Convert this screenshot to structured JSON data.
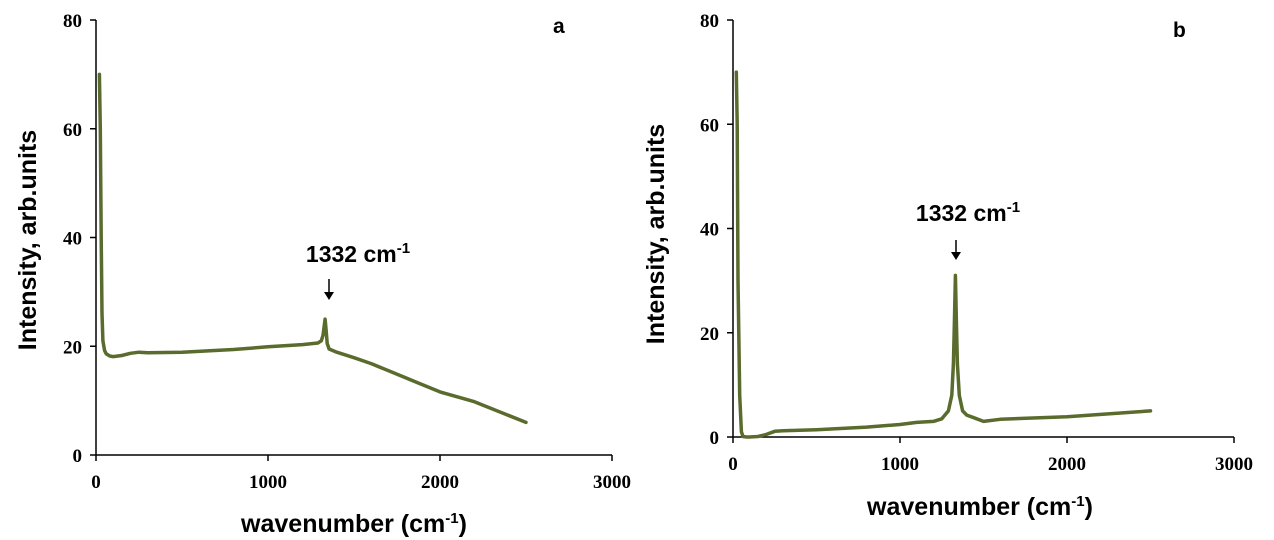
{
  "chart_data": [
    {
      "type": "line",
      "panel_label": "a",
      "xlabel": "wavenumber (cm",
      "xlabel_sup": "-1",
      "xlabel_end": ")",
      "ylabel": "Intensity, arb.units",
      "xlim": [
        0,
        3000
      ],
      "ylim": [
        0,
        80
      ],
      "xticks": [
        "0",
        "1000",
        "2000",
        "3000"
      ],
      "yticks": [
        "0",
        "20",
        "40",
        "60",
        "80"
      ],
      "grid": false,
      "line_color": "#5a6b2e",
      "annotation": {
        "text": "1332 cm",
        "sup": "-1",
        "x": 1332,
        "y": 25
      },
      "series": [
        {
          "x": [
            20,
            25,
            30,
            35,
            40,
            50,
            60,
            80,
            100,
            150,
            200,
            250,
            300,
            500,
            800,
            1000,
            1200,
            1290,
            1310,
            1320,
            1326,
            1332,
            1338,
            1344,
            1355,
            1400,
            1500,
            1600,
            1800,
            2000,
            2200,
            2500
          ],
          "y": [
            70,
            60,
            40,
            26,
            21,
            19.2,
            18.6,
            18.2,
            18.1,
            18.3,
            18.7,
            18.9,
            18.8,
            18.9,
            19.4,
            19.9,
            20.3,
            20.6,
            21.0,
            22.0,
            23.6,
            25.0,
            23.0,
            20.5,
            19.5,
            18.9,
            17.9,
            16.8,
            14.2,
            11.6,
            9.8,
            6.0
          ]
        }
      ]
    },
    {
      "type": "line",
      "panel_label": "b",
      "xlabel": "wavenumber (cm",
      "xlabel_sup": "-1",
      "xlabel_end": ")",
      "ylabel": "Intensity, arb.units",
      "xlim": [
        0,
        3000
      ],
      "ylim": [
        0,
        80
      ],
      "xticks": [
        "0",
        "1000",
        "2000",
        "3000"
      ],
      "yticks": [
        "0",
        "20",
        "40",
        "60",
        "80"
      ],
      "grid": false,
      "line_color": "#5a6b2e",
      "annotation": {
        "text": "1332 cm",
        "sup": "-1",
        "x": 1332,
        "y": 31
      },
      "series": [
        {
          "x": [
            20,
            25,
            30,
            40,
            50,
            60,
            80,
            100,
            150,
            200,
            250,
            300,
            500,
            800,
            1000,
            1100,
            1200,
            1250,
            1290,
            1310,
            1320,
            1326,
            1332,
            1338,
            1344,
            1355,
            1375,
            1400,
            1450,
            1500,
            1600,
            2000,
            2500
          ],
          "y": [
            70,
            60,
            30,
            8,
            1,
            0.1,
            0,
            0,
            0.1,
            0.5,
            1.1,
            1.2,
            1.4,
            1.9,
            2.4,
            2.8,
            3.0,
            3.5,
            5.0,
            8.0,
            14.0,
            22.0,
            31.0,
            22.0,
            14.0,
            8.0,
            5.0,
            4.2,
            3.6,
            3.0,
            3.4,
            3.9,
            5.0
          ]
        }
      ]
    }
  ]
}
